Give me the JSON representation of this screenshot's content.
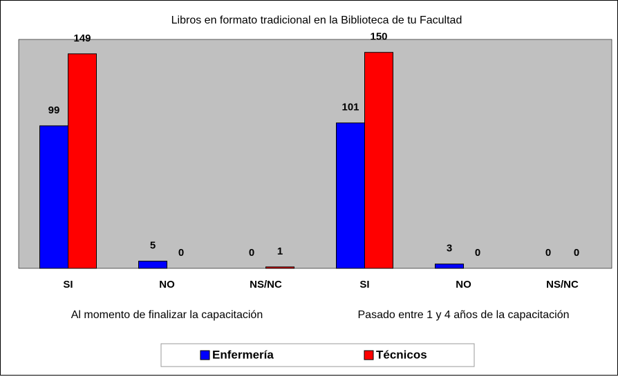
{
  "chart_data": {
    "type": "bar",
    "title": "Libros en formato tradicional en la Biblioteca de tu Facultad",
    "categories": [
      "SI",
      "NO",
      "NS/NC",
      "SI",
      "NO",
      "NS/NC"
    ],
    "group_labels": [
      "Al momento de finalizar la capacitación",
      "Pasado entre 1 y 4 años de la capacitación"
    ],
    "series": [
      {
        "name": "Enfermería",
        "color": "#0000ff",
        "values": [
          99,
          5,
          0,
          101,
          3,
          0
        ]
      },
      {
        "name": "Técnicos",
        "color": "#ff0000",
        "values": [
          149,
          0,
          1,
          150,
          0,
          0
        ]
      }
    ],
    "ylim": [
      0,
      159
    ],
    "legend": "bottom"
  }
}
